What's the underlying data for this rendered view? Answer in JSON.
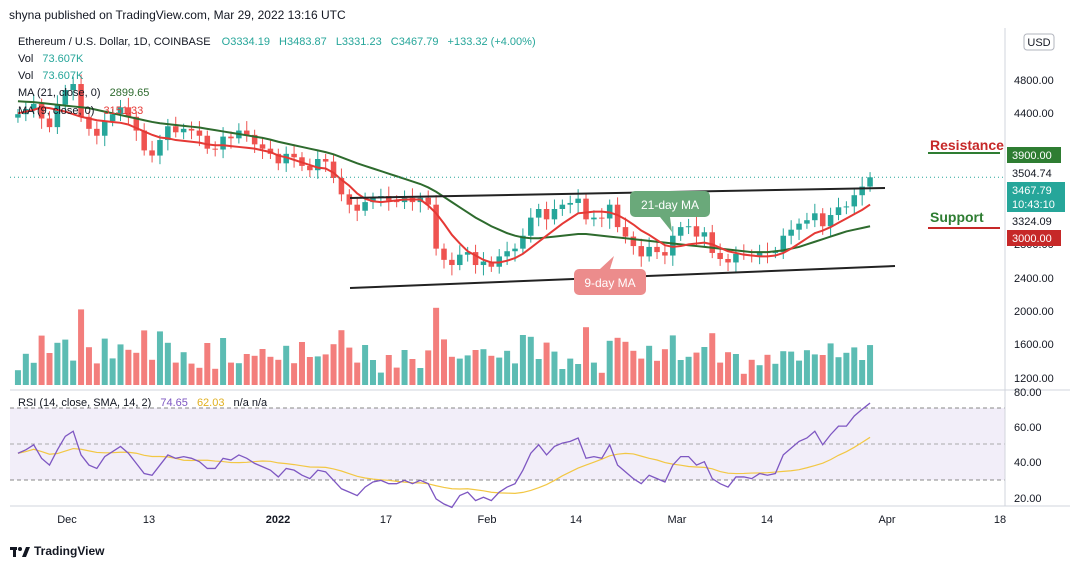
{
  "header": {
    "publisher": "shyna published on TradingView.com, Mar 29, 2022 13:16 UTC"
  },
  "legend": {
    "symbol": "Ethereum / U.S. Dollar, 1D, COINBASE",
    "open": "O3334.19",
    "high": "H3483.87",
    "low": "L3331.23",
    "close": "C3467.79",
    "change": "+133.32 (+4.00%)",
    "vol1_label": "Vol",
    "vol1_value": "73.607K",
    "vol2_label": "Vol",
    "vol2_value": "73.607K",
    "ma21_label": "MA (21, close, 0)",
    "ma21_value": "2899.65",
    "ma9_label": "MA (9, close, 0)",
    "ma9_value": "3151.33",
    "rsi_label": "RSI (14, close, SMA, 14, 2)",
    "rsi_value": "74.65",
    "rsi_sma_value": "62.03",
    "rsi_na": "n/a  n/a"
  },
  "price_axis": {
    "currency": "USD",
    "ticks": [
      "4800.00",
      "4400.00",
      "2800.00",
      "2400.00",
      "2000.00",
      "1600.00",
      "1200.00"
    ]
  },
  "price_labels": {
    "resistance": "3900.00",
    "r1": "3504.74",
    "current": "3467.79",
    "countdown": "10:43:10",
    "s1": "3324.09",
    "support": "3000.00"
  },
  "annotations": {
    "resistance": "Resistance",
    "support": "Support",
    "ma21": "21-day MA",
    "ma9": "9-day MA"
  },
  "rsi_axis": {
    "ticks": [
      "80.00",
      "60.00",
      "40.00",
      "20.00"
    ]
  },
  "time_axis": {
    "ticks": [
      "Dec",
      "13",
      "2022",
      "17",
      "Feb",
      "14",
      "Mar",
      "14",
      "Apr",
      "18"
    ]
  },
  "footer": {
    "brand": "TradingView"
  },
  "colors": {
    "up": "#26a69a",
    "down": "#ef5350",
    "ma9": "#e53935",
    "ma21": "#2e6b2e",
    "rsi": "#7e57c2",
    "rsi_sma": "#f2c744",
    "resistance": "#c62828",
    "support_line": "#c62828",
    "resistance_tag": "#2e7d32",
    "support_tag": "#c62828",
    "ma21_callout": "#6aa97a",
    "ma9_callout": "#ec8c8c"
  },
  "chart_data": {
    "type": "candlestick",
    "symbol": "Ethereum / U.S. Dollar, 1D, COINBASE",
    "x_range": [
      "2021-11-27",
      "2022-03-29"
    ],
    "y_range": [
      1000,
      5200
    ],
    "rsi_range": [
      15,
      80
    ],
    "close_series": [
      4200,
      4260,
      4320,
      4150,
      4050,
      4310,
      4480,
      4550,
      4170,
      4030,
      3950,
      4120,
      4200,
      4280,
      4170,
      4010,
      3780,
      3720,
      3900,
      4060,
      3990,
      4030,
      4010,
      3950,
      3800,
      3790,
      3940,
      3920,
      4010,
      3960,
      3850,
      3800,
      3740,
      3630,
      3740,
      3700,
      3600,
      3550,
      3680,
      3650,
      3460,
      3270,
      3150,
      3080,
      3180,
      3230,
      3250,
      3200,
      3180,
      3230,
      3180,
      3230,
      3150,
      2640,
      2510,
      2450,
      2570,
      2600,
      2450,
      2490,
      2430,
      2550,
      2610,
      2640,
      2790,
      3000,
      3100,
      2980,
      3100,
      3150,
      3170,
      3220,
      2980,
      3000,
      2990,
      3150,
      2890,
      2780,
      2670,
      2550,
      2660,
      2600,
      2560,
      2790,
      2890,
      2900,
      2780,
      2830,
      2590,
      2520,
      2480,
      2580,
      2570,
      2560,
      2600,
      2590,
      2600,
      2790,
      2860,
      2930,
      2970,
      3050,
      2900,
      3030,
      3120,
      3130,
      3260,
      3360,
      3467.79
    ],
    "ma9_series": [
      4210,
      4230,
      4250,
      4280,
      4270,
      4250,
      4230,
      4200,
      4170,
      4150,
      4130,
      4120,
      4110,
      4100,
      4080,
      4040,
      4000,
      3960,
      3930,
      3920,
      3900,
      3890,
      3880,
      3870,
      3850,
      3840,
      3840,
      3830,
      3820,
      3810,
      3800,
      3780,
      3760,
      3720,
      3700,
      3670,
      3640,
      3610,
      3580,
      3570,
      3520,
      3440,
      3370,
      3280,
      3220,
      3190,
      3180,
      3190,
      3200,
      3210,
      3210,
      3210,
      3140,
      3050,
      2930,
      2800,
      2700,
      2610,
      2560,
      2510,
      2480,
      2480,
      2500,
      2530,
      2580,
      2650,
      2720,
      2790,
      2860,
      2930,
      2990,
      3050,
      3060,
      3070,
      3070,
      3060,
      3030,
      2980,
      2920,
      2850,
      2800,
      2740,
      2680,
      2660,
      2670,
      2690,
      2700,
      2710,
      2690,
      2650,
      2610,
      2590,
      2570,
      2560,
      2550,
      2550,
      2560,
      2590,
      2640,
      2700,
      2760,
      2820,
      2850,
      2890,
      2940,
      2990,
      3040,
      3090,
      3151.33
    ],
    "ma21_series": [
      4350,
      4345,
      4340,
      4330,
      4320,
      4310,
      4300,
      4290,
      4280,
      4270,
      4250,
      4230,
      4210,
      4190,
      4170,
      4150,
      4130,
      4110,
      4095,
      4085,
      4075,
      4065,
      4055,
      4045,
      4030,
      4015,
      4000,
      3985,
      3970,
      3955,
      3940,
      3925,
      3905,
      3880,
      3860,
      3840,
      3820,
      3800,
      3780,
      3760,
      3735,
      3700,
      3665,
      3630,
      3600,
      3570,
      3540,
      3510,
      3480,
      3450,
      3420,
      3390,
      3350,
      3300,
      3240,
      3180,
      3120,
      3060,
      3000,
      2950,
      2900,
      2860,
      2820,
      2790,
      2770,
      2760,
      2760,
      2770,
      2780,
      2790,
      2800,
      2810,
      2810,
      2800,
      2790,
      2780,
      2770,
      2760,
      2750,
      2740,
      2730,
      2720,
      2710,
      2700,
      2690,
      2680,
      2670,
      2660,
      2650,
      2640,
      2630,
      2620,
      2610,
      2600,
      2600,
      2600,
      2610,
      2620,
      2640,
      2660,
      2690,
      2720,
      2750,
      2780,
      2810,
      2840,
      2860,
      2880,
      2899.65
    ],
    "rsi_series": [
      45,
      47,
      50,
      42,
      38,
      47,
      55,
      58,
      44,
      38,
      36,
      43,
      46,
      49,
      45,
      39,
      33,
      32,
      38,
      44,
      42,
      43,
      42,
      40,
      36,
      36,
      42,
      41,
      44,
      42,
      39,
      37,
      35,
      31,
      36,
      35,
      32,
      30,
      35,
      34,
      29,
      24,
      22,
      20,
      25,
      28,
      29,
      27,
      27,
      29,
      27,
      29,
      27,
      18,
      15,
      13,
      20,
      22,
      17,
      19,
      17,
      22,
      25,
      27,
      35,
      45,
      50,
      44,
      49,
      51,
      52,
      54,
      42,
      43,
      42,
      50,
      38,
      34,
      30,
      27,
      32,
      30,
      28,
      38,
      43,
      43,
      38,
      40,
      30,
      27,
      25,
      31,
      31,
      30,
      33,
      32,
      33,
      44,
      48,
      52,
      54,
      58,
      50,
      56,
      61,
      61,
      67,
      71,
      74.65
    ],
    "resistance_level": 3900,
    "support_level": 3000,
    "time_ticks": [
      "Dec",
      "13",
      "2022",
      "17",
      "Feb",
      "14",
      "Mar",
      "14",
      "Apr",
      "18"
    ]
  }
}
